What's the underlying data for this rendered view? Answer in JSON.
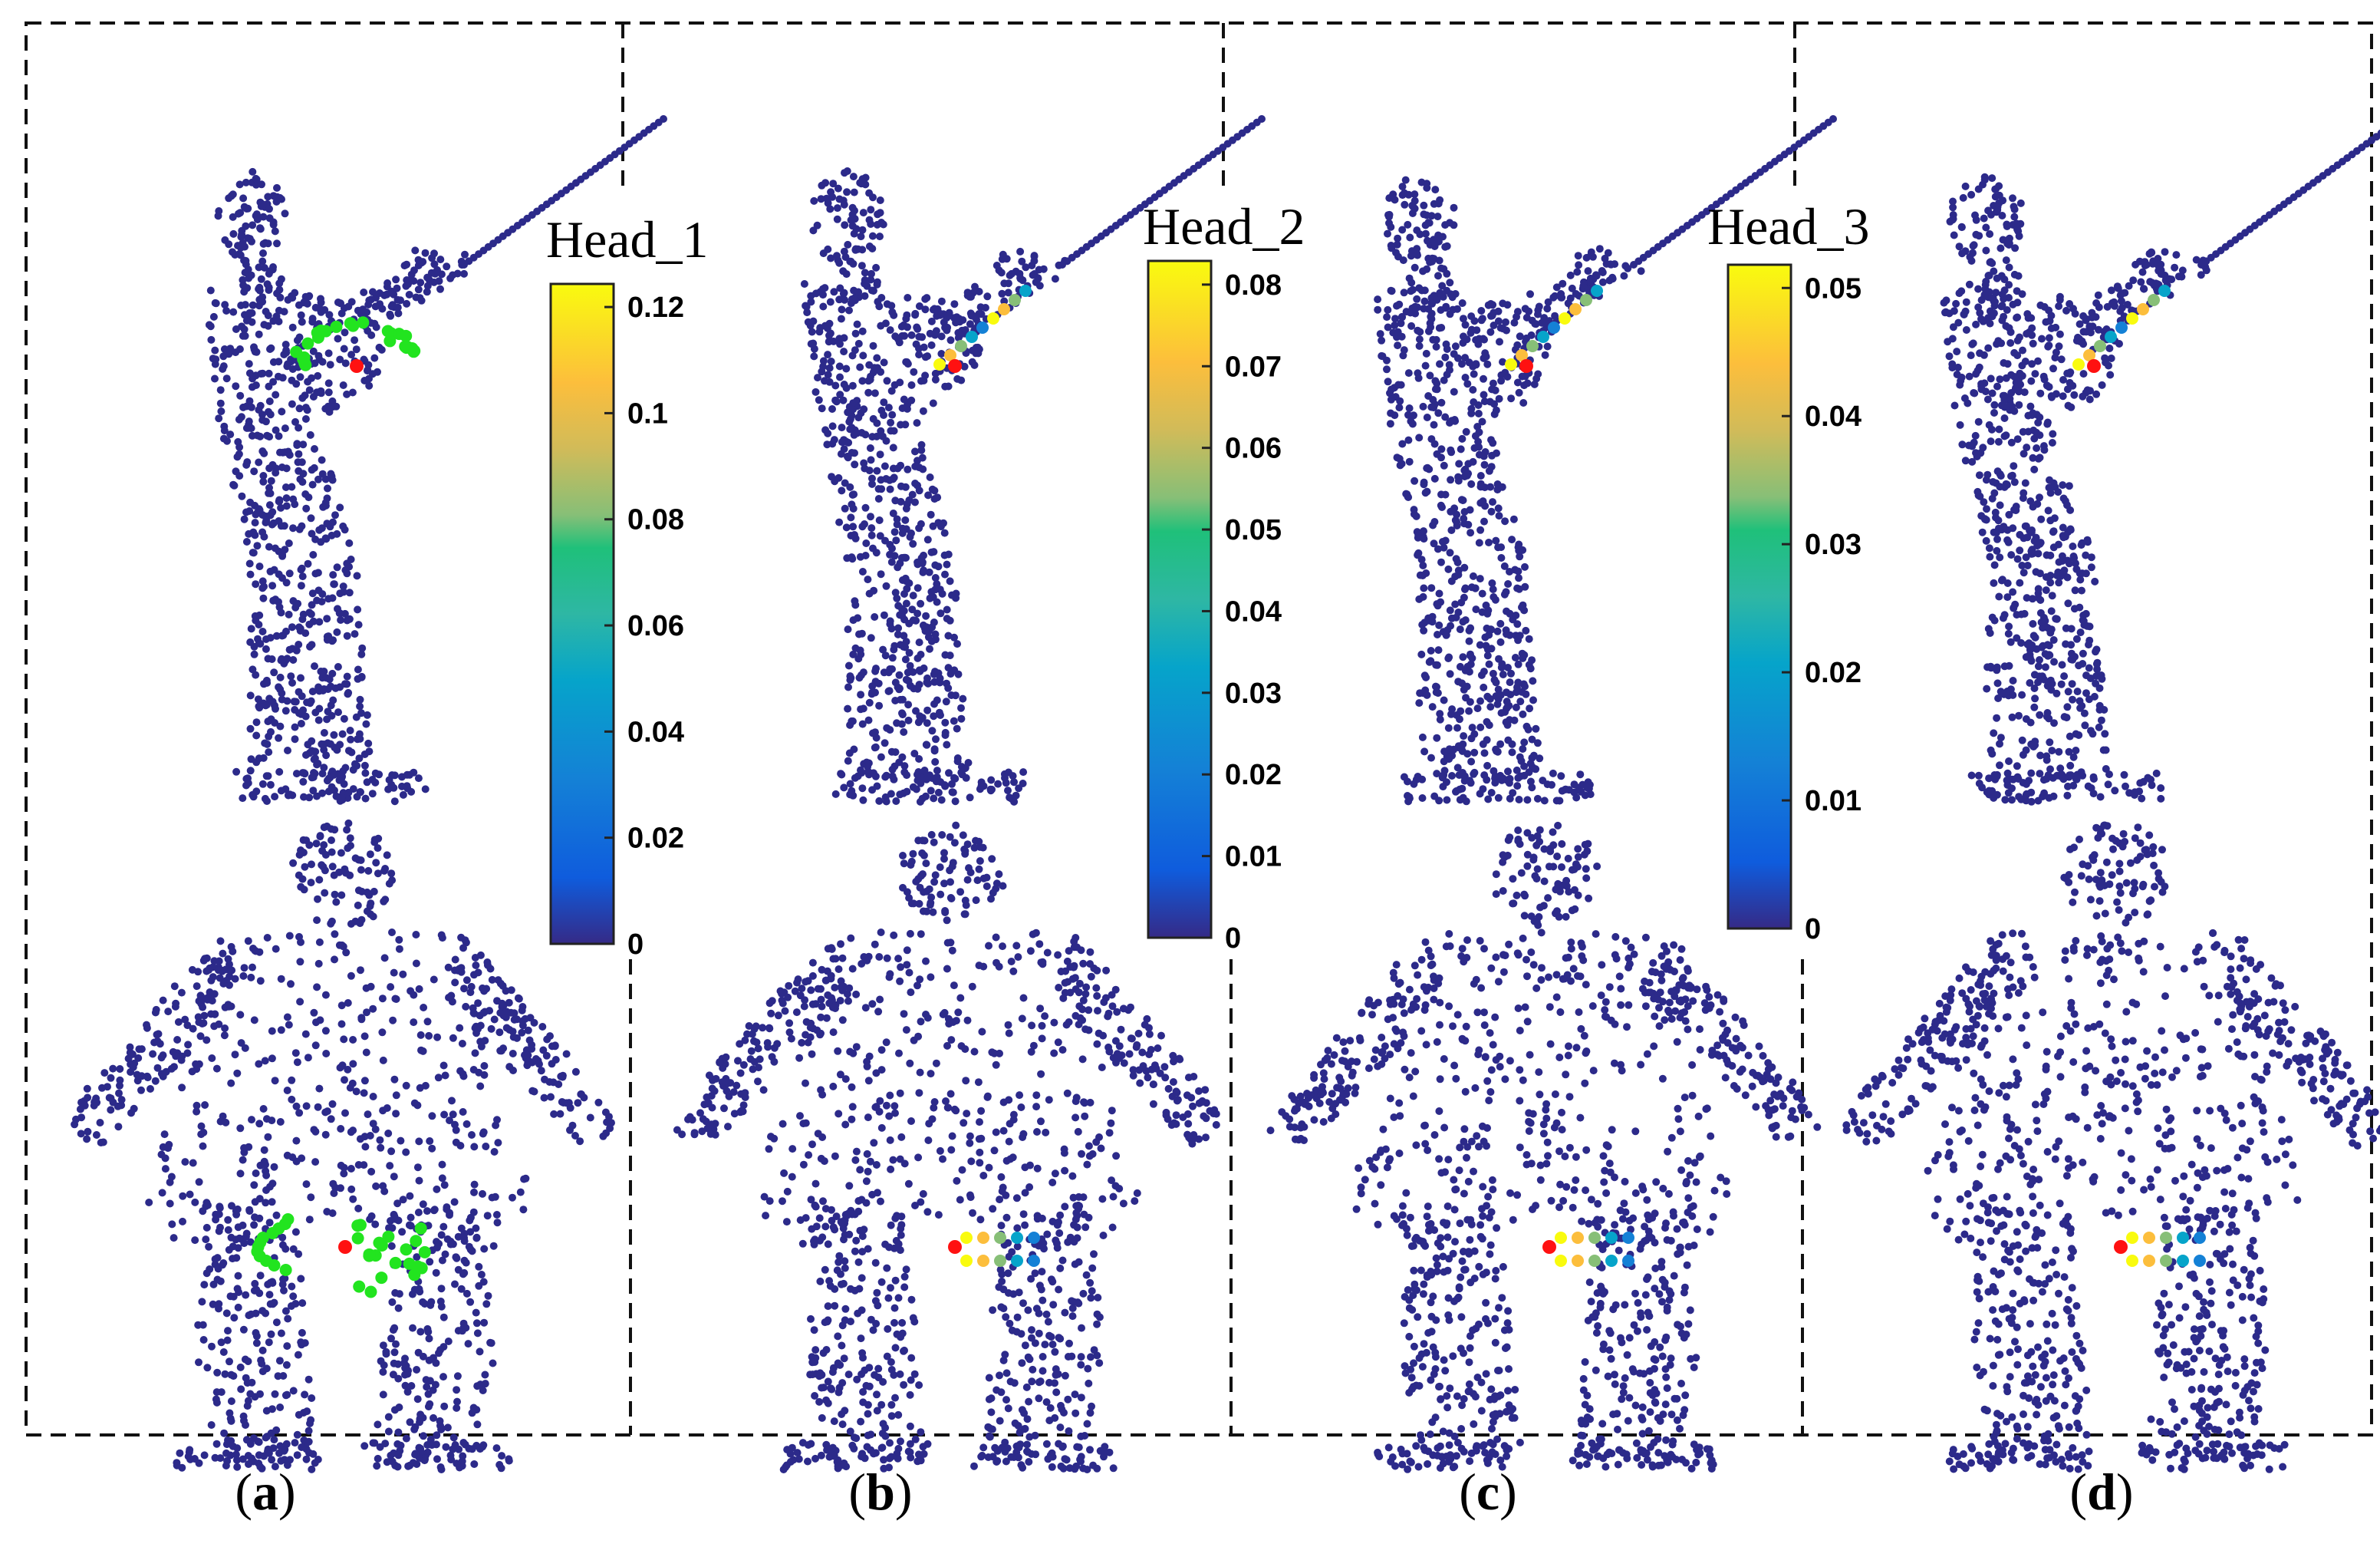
{
  "figure": {
    "panels": [
      {
        "id": "a",
        "label": "a",
        "colorbar": {
          "title": "Head_1",
          "ticks": [
            "0.12",
            "0.1",
            "0.08",
            "0.06",
            "0.04",
            "0.02",
            "0"
          ]
        },
        "highlight_style": "green"
      },
      {
        "id": "b",
        "label": "b",
        "colorbar": {
          "title": "Head_2",
          "ticks": [
            "0.08",
            "0.07",
            "0.06",
            "0.05",
            "0.04",
            "0.03",
            "0.02",
            "0.01",
            "0"
          ]
        },
        "highlight_style": "heat"
      },
      {
        "id": "c",
        "label": "c",
        "colorbar": {
          "title": "Head_3",
          "ticks": [
            "0.05",
            "0.04",
            "0.03",
            "0.02",
            "0.01",
            "0"
          ]
        },
        "highlight_style": "heat"
      },
      {
        "id": "d",
        "label": "d",
        "colorbar": null,
        "highlight_style": "heat"
      }
    ],
    "colors": {
      "point": "#2c2a8a",
      "highlight_green": "#22e41f",
      "query_point": "#ff1111",
      "frame": "#111111"
    }
  }
}
